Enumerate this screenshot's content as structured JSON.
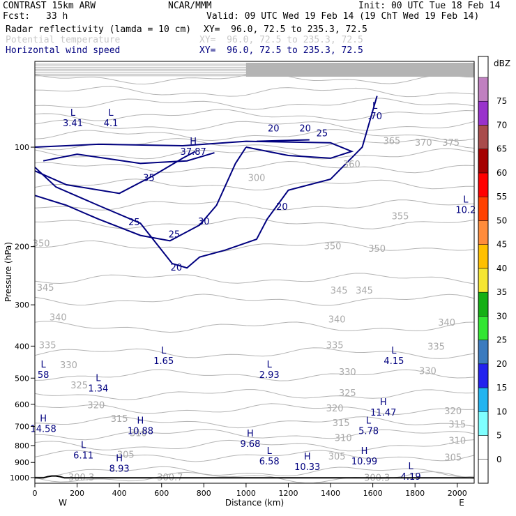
{
  "header": {
    "model": "CONTRAST 15km ARW",
    "org": "NCAR/MMM",
    "init": "Init: 00 UTC Tue 18 Feb 14",
    "fcst_label": "Fcst:",
    "fcst_value": "33 h",
    "valid": "Valid: 09 UTC Wed 19 Feb 14 (19 ChT Wed 19 Feb 14)",
    "fields": [
      {
        "name": "Radar reflectivity (lamda = 10 cm)",
        "xy": "XY=  96.0, 72.5 to 235.3, 72.5",
        "color": "#000000"
      },
      {
        "name": "Potential temperature",
        "xy": "XY=  96.0, 72.5 to 235.3, 72.5",
        "color": "#c8c8c8"
      },
      {
        "name": "Horizontal wind speed",
        "xy": "XY=  96.0, 72.5 to 235.3, 72.5",
        "color": "#00007f"
      }
    ]
  },
  "chart_data": {
    "type": "cross-section contour",
    "xlabel": "Distance (km)",
    "ylabel": "Pressure (hPa)",
    "x_end_left": "W",
    "x_end_right": "E",
    "xlim": [
      0,
      2080
    ],
    "ylim": [
      1040,
      55
    ],
    "y_scale": "log",
    "x_ticks": [
      0,
      200,
      400,
      600,
      800,
      1000,
      1200,
      1400,
      1600,
      1800,
      2000
    ],
    "y_ticks": [
      100,
      200,
      300,
      400,
      500,
      600,
      700,
      800,
      900,
      1000
    ],
    "colorbar": {
      "title": "dBZ",
      "levels": [
        0,
        5,
        10,
        15,
        20,
        25,
        30,
        35,
        40,
        45,
        50,
        55,
        60,
        65,
        70,
        75
      ],
      "colors": [
        "#ffffff",
        "#7fffff",
        "#22b4f0",
        "#2222ee",
        "#3b7bbf",
        "#32e632",
        "#14af14",
        "#f5e632",
        "#ffc000",
        "#ff8c3c",
        "#ff4100",
        "#ff0000",
        "#a50000",
        "#a94c4c",
        "#9932cc",
        "#c080c0"
      ]
    },
    "theta_labels": [
      {
        "value": "300.3",
        "x": 220,
        "p": 1000
      },
      {
        "value": "300.7",
        "x": 640,
        "p": 1000
      },
      {
        "value": "300.3",
        "x": 1620,
        "p": 1003
      },
      {
        "value": "305",
        "x": 430,
        "p": 855
      },
      {
        "value": "305",
        "x": 1430,
        "p": 865
      },
      {
        "value": "305",
        "x": 1980,
        "p": 870
      },
      {
        "value": "310",
        "x": 490,
        "p": 735
      },
      {
        "value": "310",
        "x": 1460,
        "p": 760
      },
      {
        "value": "310",
        "x": 2000,
        "p": 775
      },
      {
        "value": "315",
        "x": 400,
        "p": 665
      },
      {
        "value": "315",
        "x": 1450,
        "p": 685
      },
      {
        "value": "315",
        "x": 2000,
        "p": 692
      },
      {
        "value": "320",
        "x": 290,
        "p": 605
      },
      {
        "value": "320",
        "x": 1420,
        "p": 618
      },
      {
        "value": "320",
        "x": 1980,
        "p": 630
      },
      {
        "value": "325",
        "x": 210,
        "p": 527
      },
      {
        "value": "325",
        "x": 1480,
        "p": 555
      },
      {
        "value": "330",
        "x": 160,
        "p": 457
      },
      {
        "value": "330",
        "x": 1480,
        "p": 480
      },
      {
        "value": "330",
        "x": 1860,
        "p": 477
      },
      {
        "value": "335",
        "x": 60,
        "p": 398
      },
      {
        "value": "335",
        "x": 1420,
        "p": 398
      },
      {
        "value": "335",
        "x": 1900,
        "p": 402
      },
      {
        "value": "340",
        "x": 110,
        "p": 328
      },
      {
        "value": "340",
        "x": 1430,
        "p": 333
      },
      {
        "value": "340",
        "x": 1950,
        "p": 340
      },
      {
        "value": "345",
        "x": 50,
        "p": 267
      },
      {
        "value": "345",
        "x": 1440,
        "p": 272
      },
      {
        "value": "345",
        "x": 1560,
        "p": 272
      },
      {
        "value": "350",
        "x": 30,
        "p": 196
      },
      {
        "value": "350",
        "x": 1410,
        "p": 200
      },
      {
        "value": "350",
        "x": 1620,
        "p": 203
      },
      {
        "value": "355",
        "x": 1730,
        "p": 162
      },
      {
        "value": "360",
        "x": 1500,
        "p": 113
      },
      {
        "value": "365",
        "x": 1690,
        "p": 96
      },
      {
        "value": "370",
        "x": 1840,
        "p": 97
      },
      {
        "value": "375",
        "x": 1970,
        "p": 97
      },
      {
        "value": "300",
        "x": 1050,
        "p": 124
      }
    ],
    "wind_labels": [
      {
        "value": "35",
        "x": 540,
        "p": 124
      },
      {
        "value": "30",
        "x": 800,
        "p": 168
      },
      {
        "value": "25",
        "x": 470,
        "p": 169
      },
      {
        "value": "25",
        "x": 660,
        "p": 184
      },
      {
        "value": "20",
        "x": 670,
        "p": 232
      },
      {
        "value": "20",
        "x": 1170,
        "p": 152
      },
      {
        "value": "20",
        "x": 1130,
        "p": 88
      },
      {
        "value": "20",
        "x": 1280,
        "p": 88
      },
      {
        "value": "25",
        "x": 1360,
        "p": 91
      }
    ],
    "extrema": [
      {
        "kind": "L",
        "value": "3.41",
        "x": 180,
        "p": 82
      },
      {
        "kind": "L",
        "value": "4.1",
        "x": 360,
        "p": 82
      },
      {
        "kind": "H",
        "value": "37.87",
        "x": 750,
        "p": 100
      },
      {
        "kind": "L",
        "value": ".70",
        "x": 1610,
        "p": 78
      },
      {
        "kind": "L",
        "value": "10.2",
        "x": 2040,
        "p": 150
      },
      {
        "kind": "L",
        "value": "1.65",
        "x": 610,
        "p": 430
      },
      {
        "kind": "L",
        "value": "4.15",
        "x": 1700,
        "p": 430
      },
      {
        "kind": "L",
        "value": "58",
        "x": 40,
        "p": 473
      },
      {
        "kind": "L",
        "value": "2.93",
        "x": 1110,
        "p": 473
      },
      {
        "kind": "L",
        "value": "1.34",
        "x": 300,
        "p": 520
      },
      {
        "kind": "H",
        "value": "11.47",
        "x": 1650,
        "p": 615
      },
      {
        "kind": "H",
        "value": "14.58",
        "x": 40,
        "p": 690
      },
      {
        "kind": "H",
        "value": "10.88",
        "x": 500,
        "p": 700
      },
      {
        "kind": "L",
        "value": "5.78",
        "x": 1580,
        "p": 700
      },
      {
        "kind": "H",
        "value": "9.68",
        "x": 1020,
        "p": 765
      },
      {
        "kind": "L",
        "value": "6.11",
        "x": 230,
        "p": 830
      },
      {
        "kind": "L",
        "value": "6.58",
        "x": 1110,
        "p": 865
      },
      {
        "kind": "H",
        "value": "10.99",
        "x": 1560,
        "p": 865
      },
      {
        "kind": "H",
        "value": "10.33",
        "x": 1290,
        "p": 900
      },
      {
        "kind": "H",
        "value": "8.93",
        "x": 400,
        "p": 910
      },
      {
        "kind": "L",
        "value": "4.19",
        "x": 1780,
        "p": 963
      }
    ]
  }
}
